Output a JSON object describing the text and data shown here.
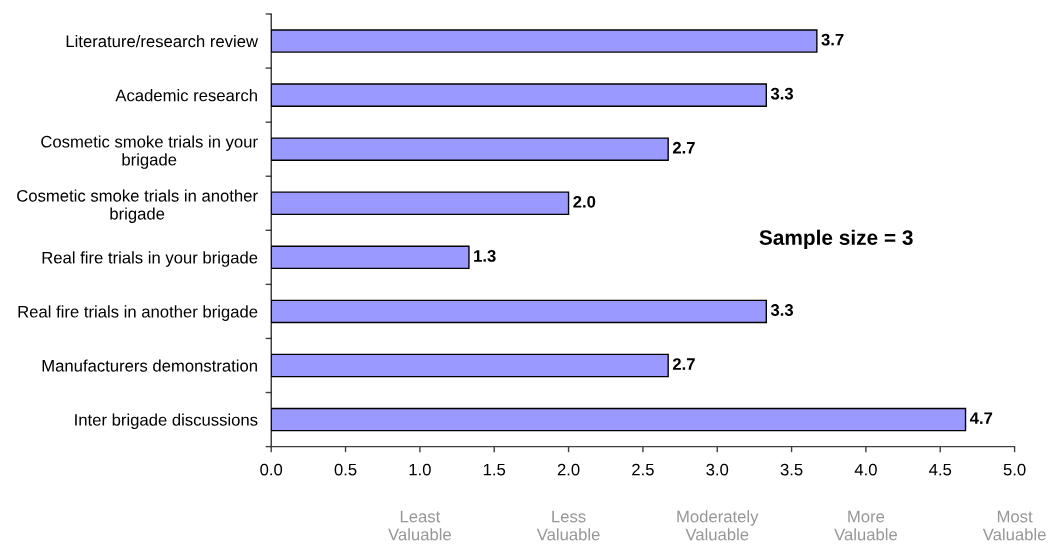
{
  "chart_data": {
    "type": "bar",
    "orientation": "horizontal",
    "categories": [
      "Literature/research review",
      "Academic research",
      "Cosmetic smoke trials in your\nbrigade",
      "Cosmetic smoke trials in another\nbrigade",
      "Real fire trials in your brigade",
      "Real fire trials in another brigade",
      "Manufacturers demonstration",
      "Inter brigade discussions"
    ],
    "values": [
      3.67,
      3.33,
      2.67,
      2.0,
      1.33,
      3.33,
      2.67,
      4.67
    ],
    "value_labels": [
      "3.7",
      "3.3",
      "2.7",
      "2.0",
      "1.3",
      "3.3",
      "2.7",
      "4.7"
    ],
    "color": "#9999ff",
    "xlim": [
      0,
      5
    ],
    "xticks": [
      {
        "value": 0,
        "label": "0.0"
      },
      {
        "value": 0.5,
        "label": "0.5"
      },
      {
        "value": 1,
        "label": "1.0"
      },
      {
        "value": 1.5,
        "label": "1.5"
      },
      {
        "value": 2,
        "label": "2.0"
      },
      {
        "value": 2.5,
        "label": "2.5"
      },
      {
        "value": 3,
        "label": "3.0"
      },
      {
        "value": 3.5,
        "label": "3.5"
      },
      {
        "value": 4,
        "label": "4.0"
      },
      {
        "value": 4.5,
        "label": "4.5"
      },
      {
        "value": 5,
        "label": "5.0"
      }
    ],
    "annotations": [
      "Sample size = 3",
      "Least\nValuable",
      "Less\nValuable",
      "Moderately\nValuable",
      "More\nValuable",
      "Most\nValuable"
    ]
  }
}
